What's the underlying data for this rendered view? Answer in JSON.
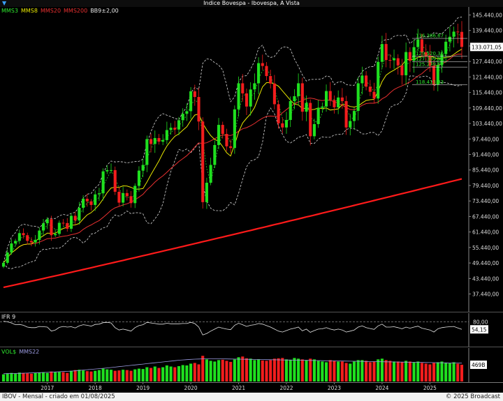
{
  "window": {
    "title": "Indice Bovespa - Ibovespa, A Vista",
    "menu_icon": "chevron-down-icon"
  },
  "price_legend": [
    {
      "label": "MMS3",
      "color": "#2ee82e"
    },
    {
      "label": "MMS8",
      "color": "#e6e600"
    },
    {
      "label": "MMS20",
      "color": "#e83030"
    },
    {
      "label": "MMS200",
      "color": "#e83030"
    },
    {
      "label": "BB9±2,00",
      "color": "#e6e6e6"
    }
  ],
  "ifr_legend": {
    "label": "IFR 9",
    "color": "#e6e6e6"
  },
  "vol_legend": [
    {
      "label": "VOL$",
      "color": "#2ee82e"
    },
    {
      "label": "MMS22",
      "color": "#9a9adf"
    }
  ],
  "footer": {
    "left": "IBOV - Mensal - criado em 01/08/2025",
    "right": "© 2025 Broadcast"
  },
  "colors": {
    "up": "#1fe01f",
    "down": "#f21d1d",
    "mms3": "#2ee82e",
    "mms8": "#e6e600",
    "mms20": "#e83030",
    "mms200": "#ff1a1a",
    "bands": "#d8d8d8"
  },
  "chart_data": [
    {
      "type": "candlestick",
      "title": "Indice Bovespa - Ibovespa, A Vista",
      "ylim": [
        33000,
        148000
      ],
      "y_ticks": [
        "145.440,00",
        "139.440,00",
        "133.440,00",
        "127.440,00",
        "121.440,00",
        "115.440,00",
        "109.440,00",
        "103.440,00",
        "97.440,00",
        "91.440,00",
        "85.440,00",
        "79.440,00",
        "73.440,00",
        "67.440,00",
        "61.440,00",
        "55.440,00",
        "49.440,00",
        "43.440,00",
        "37.440,00"
      ],
      "y_tick_values": [
        145440,
        139440,
        133440,
        127440,
        121440,
        115440,
        109440,
        103440,
        97440,
        91440,
        85440,
        79440,
        73440,
        67440,
        61440,
        55440,
        49440,
        43440,
        37440
      ],
      "x_labels": [
        "2017",
        "2018",
        "2019",
        "2020",
        "2021",
        "2022",
        "2023",
        "2024",
        "2025"
      ],
      "x_label_months": [
        11,
        23,
        35,
        47,
        59,
        71,
        83,
        95,
        107
      ],
      "last_value_label": "133.071,05",
      "last_value": 133071,
      "fib_levels": [
        {
          "label": "136.386,67",
          "value": 136387
        },
        {
          "label": "129.520,36",
          "value": 129520
        },
        {
          "label": "127.399,99",
          "value": 127400
        },
        {
          "label": "125.279,62",
          "value": 125280
        },
        {
          "label": "118.413,03",
          "value": 118413
        }
      ],
      "close": [
        49500,
        53500,
        57000,
        58000,
        61000,
        60200,
        58000,
        57400,
        58400,
        62000,
        64800,
        66400,
        60200,
        60700,
        65000,
        64900,
        62700,
        67700,
        65900,
        70800,
        74300,
        73300,
        71900,
        76000,
        76400,
        84900,
        85400,
        85400,
        77000,
        72800,
        76500,
        75300,
        72600,
        79300,
        85200,
        87400,
        97400,
        95500,
        97800,
        96400,
        97000,
        100900,
        101800,
        101100,
        104700,
        107200,
        108200,
        115900,
        113700,
        104200,
        73000,
        80500,
        87400,
        95100,
        102900,
        99400,
        94600,
        93950,
        108900,
        119000,
        115100,
        110000,
        116600,
        119000,
        126800,
        125700,
        121800,
        118900,
        110900,
        103500,
        101900,
        104800,
        112100,
        114000,
        119000,
        108000,
        111400,
        98500,
        103200,
        109500,
        110000,
        116000,
        112500,
        109700,
        113500,
        112100,
        101900,
        104400,
        108300,
        119000,
        122000,
        117700,
        115700,
        113100,
        127300,
        134200,
        128000,
        127900,
        128700,
        125900,
        122100,
        131100,
        127700,
        133000,
        136000,
        131000,
        129700,
        125700,
        118500,
        126100,
        130300,
        135100,
        137000,
        139000,
        138900,
        133071
      ],
      "rsi": [
        82,
        80,
        76,
        70,
        71,
        68,
        62,
        60,
        60,
        64,
        63,
        62,
        48,
        52,
        61,
        64,
        62,
        63,
        59,
        66,
        70,
        68,
        65,
        71,
        72,
        77,
        78,
        76,
        60,
        52,
        55,
        52,
        48,
        60,
        67,
        70,
        78,
        76,
        74,
        72,
        72,
        75,
        73,
        73,
        73,
        74,
        74,
        78,
        74,
        62,
        35,
        40,
        48,
        55,
        62,
        58,
        55,
        53,
        68,
        75,
        70,
        64,
        68,
        70,
        74,
        72,
        67,
        62,
        55,
        48,
        45,
        50,
        55,
        58,
        62,
        49,
        55,
        44,
        50,
        55,
        56,
        60,
        55,
        52,
        55,
        52,
        45,
        48,
        52,
        62,
        66,
        60,
        57,
        54,
        66,
        72,
        62,
        62,
        63,
        60,
        56,
        62,
        58,
        62,
        65,
        58,
        55,
        52,
        45,
        56,
        60,
        62,
        63,
        64,
        59,
        54
      ],
      "rsi_ylim": [
        0,
        100
      ],
      "rsi_ref_level": 80,
      "rsi_tick_label": "80,00",
      "rsi_last_label": "54,15",
      "rsi_last": 54.15
    }
  ],
  "volume": {
    "ylim": [
      0,
      900
    ],
    "last_label": "469B",
    "last_value": 469,
    "values": [
      200,
      230,
      240,
      220,
      250,
      240,
      230,
      220,
      240,
      250,
      260,
      240,
      280,
      260,
      270,
      260,
      240,
      300,
      320,
      330,
      310,
      290,
      280,
      300,
      320,
      360,
      340,
      330,
      300,
      310,
      330,
      320,
      300,
      340,
      360,
      350,
      400,
      380,
      420,
      380,
      400,
      450,
      420,
      400,
      430,
      460,
      450,
      500,
      520,
      480,
      720,
      620,
      580,
      560,
      600,
      610,
      580,
      550,
      620,
      680,
      700,
      650,
      640,
      600,
      620,
      590,
      580,
      600,
      640,
      650,
      660,
      620,
      610,
      660,
      640,
      620,
      600,
      640,
      620,
      580,
      560,
      540,
      600,
      580,
      560,
      560,
      520,
      500,
      560,
      600,
      600,
      580,
      540,
      560,
      620,
      640,
      600,
      580,
      560,
      560,
      540,
      580,
      560,
      540,
      560,
      520,
      500,
      480,
      520,
      540,
      560,
      520,
      510,
      540,
      500,
      469
    ],
    "mms22": [
      220,
      222,
      224,
      226,
      228,
      232,
      236,
      240,
      244,
      248,
      252,
      256,
      262,
      268,
      274,
      280,
      286,
      292,
      300,
      310,
      320,
      330,
      340,
      350,
      360,
      370,
      380,
      392,
      404,
      416,
      428,
      440,
      452,
      464,
      476,
      488,
      500,
      512,
      524,
      536,
      548,
      560,
      572,
      584,
      596,
      604,
      612,
      620,
      626,
      630,
      634,
      636,
      636,
      636,
      636,
      634,
      632,
      630,
      628,
      626,
      624,
      622,
      620,
      618,
      616,
      614,
      612,
      610,
      608,
      606,
      604,
      602,
      600,
      598,
      596,
      594,
      592,
      590,
      588,
      586,
      584,
      582,
      580,
      578,
      576,
      574,
      572,
      570,
      568,
      566,
      564,
      562,
      560,
      558,
      556,
      554,
      552,
      550,
      548,
      546,
      544,
      542,
      540,
      538,
      536,
      534,
      532,
      530,
      528,
      526,
      524,
      522,
      520,
      518,
      516,
      514
    ]
  }
}
